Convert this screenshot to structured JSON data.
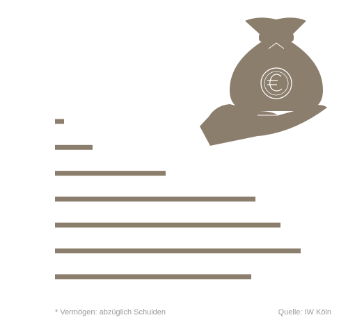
{
  "chart_data": {
    "type": "bar",
    "orientation": "horizontal",
    "categories": [
      null,
      null,
      null,
      null,
      null,
      null,
      null
    ],
    "values": [
      13,
      54,
      159,
      288,
      324,
      353,
      282
    ],
    "xlim": [
      0,
      400
    ],
    "color": "#8c7e6c",
    "footnote": "* Vermögen: abzüglich Schulden",
    "source": "Quelle: IW Köln"
  }
}
